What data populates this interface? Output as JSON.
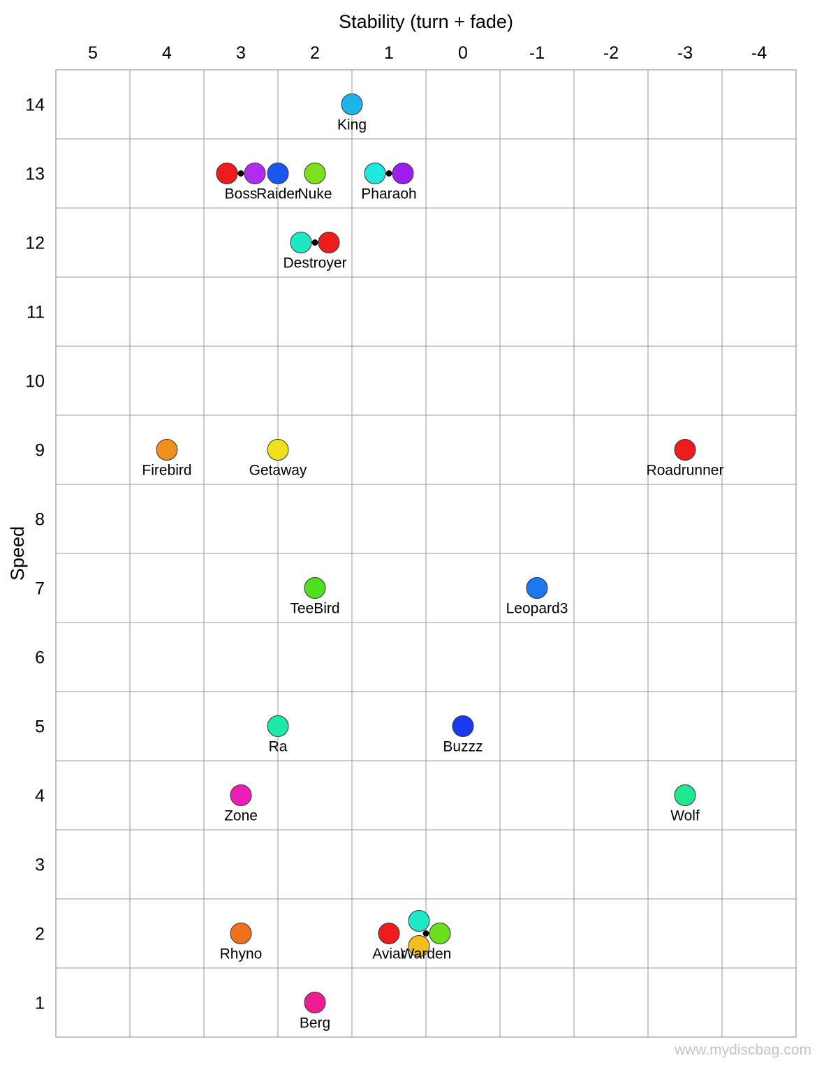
{
  "chart_data": {
    "type": "scatter",
    "xlabel": "Stability (turn + fade)",
    "ylabel": "Speed",
    "xlim": [
      5.5,
      -4.5
    ],
    "ylim": [
      0.5,
      14.5
    ],
    "x_ticks": [
      "5",
      "4",
      "3",
      "2",
      "1",
      "0",
      "-1",
      "-2",
      "-3",
      "-4"
    ],
    "y_ticks": [
      "1",
      "2",
      "3",
      "4",
      "5",
      "6",
      "7",
      "8",
      "9",
      "10",
      "11",
      "12",
      "13",
      "14"
    ],
    "grid": true,
    "points": [
      {
        "label": "King",
        "x": 1.5,
        "y": 14,
        "color": "#1eb3ea"
      },
      {
        "label": "Boss",
        "x": 3,
        "y": 13,
        "color": "#ee1c1c",
        "pair_color": "#b22cf0"
      },
      {
        "label": "Raider",
        "x": 2.5,
        "y": 13,
        "color": "#1a56f0"
      },
      {
        "label": "Nuke",
        "x": 2,
        "y": 13,
        "color": "#7ee01c"
      },
      {
        "label": "Pharaoh",
        "x": 1,
        "y": 13,
        "color": "#1ee8e0",
        "pair_color": "#9e1cf0"
      },
      {
        "label": "Destroyer",
        "x": 2,
        "y": 12,
        "color": "#1ee8c0",
        "pair_color": "#ee1c1c"
      },
      {
        "label": "Firebird",
        "x": 4,
        "y": 9,
        "color": "#f0901c"
      },
      {
        "label": "Getaway",
        "x": 2.5,
        "y": 9,
        "color": "#f0e01c"
      },
      {
        "label": "Roadrunner",
        "x": -3,
        "y": 9,
        "color": "#ee1c1c"
      },
      {
        "label": "TeeBird",
        "x": 2,
        "y": 7,
        "color": "#4ee01c"
      },
      {
        "label": "Leopard3",
        "x": -1,
        "y": 7,
        "color": "#1a78f0"
      },
      {
        "label": "Ra",
        "x": 2.5,
        "y": 5,
        "color": "#1ee8a8"
      },
      {
        "label": "Buzzz",
        "x": 0,
        "y": 5,
        "color": "#1a3af0"
      },
      {
        "label": "Zone",
        "x": 3,
        "y": 4,
        "color": "#ee1cb8"
      },
      {
        "label": "Wolf",
        "x": -3,
        "y": 4,
        "color": "#1ee890"
      },
      {
        "label": "Rhyno",
        "x": 3,
        "y": 2,
        "color": "#f0701c"
      },
      {
        "label": "Aviar",
        "x": 1,
        "y": 2,
        "color": "#ee1c1c"
      },
      {
        "label": "Warden",
        "x": 0.5,
        "y": 2,
        "color": "#1ee8c8",
        "triple_colors": [
          "#1ee8c8",
          "#6ae01c",
          "#f0c01c"
        ]
      },
      {
        "label": "Berg",
        "x": 2,
        "y": 1,
        "color": "#ee1c90"
      }
    ]
  },
  "watermark": "www.mydiscbag.com"
}
